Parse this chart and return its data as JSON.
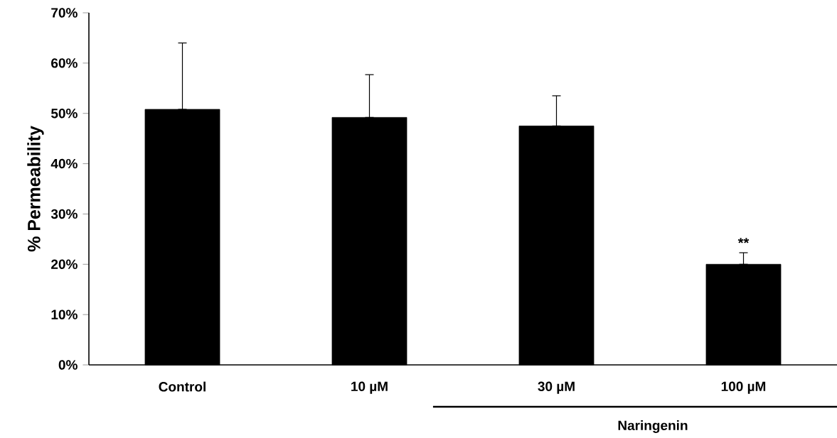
{
  "chart_data": {
    "type": "bar",
    "ylabel": "% Permeability",
    "categories": [
      "Control",
      "10 µM",
      "30 µM",
      "100 µM"
    ],
    "values": [
      50.8,
      49.2,
      47.5,
      20.0
    ],
    "errors": [
      [
        50.8,
        64.0
      ],
      [
        49.2,
        57.7
      ],
      [
        47.5,
        53.5
      ],
      [
        20.0,
        22.3
      ]
    ],
    "color": "#000000",
    "ylim": [
      0,
      70
    ],
    "yticks": [
      {
        "value": 0,
        "label": "0%"
      },
      {
        "value": 10,
        "label": "10%"
      },
      {
        "value": 20,
        "label": "20%"
      },
      {
        "value": 30,
        "label": "30%"
      },
      {
        "value": 40,
        "label": "40%"
      },
      {
        "value": 50,
        "label": "50%"
      },
      {
        "value": 60,
        "label": "60%"
      },
      {
        "value": 70,
        "label": "70%"
      }
    ],
    "annotations": [
      {
        "text": "**",
        "x": "100 µM",
        "y": 22.3
      },
      "Naringenin"
    ],
    "grid": false
  }
}
